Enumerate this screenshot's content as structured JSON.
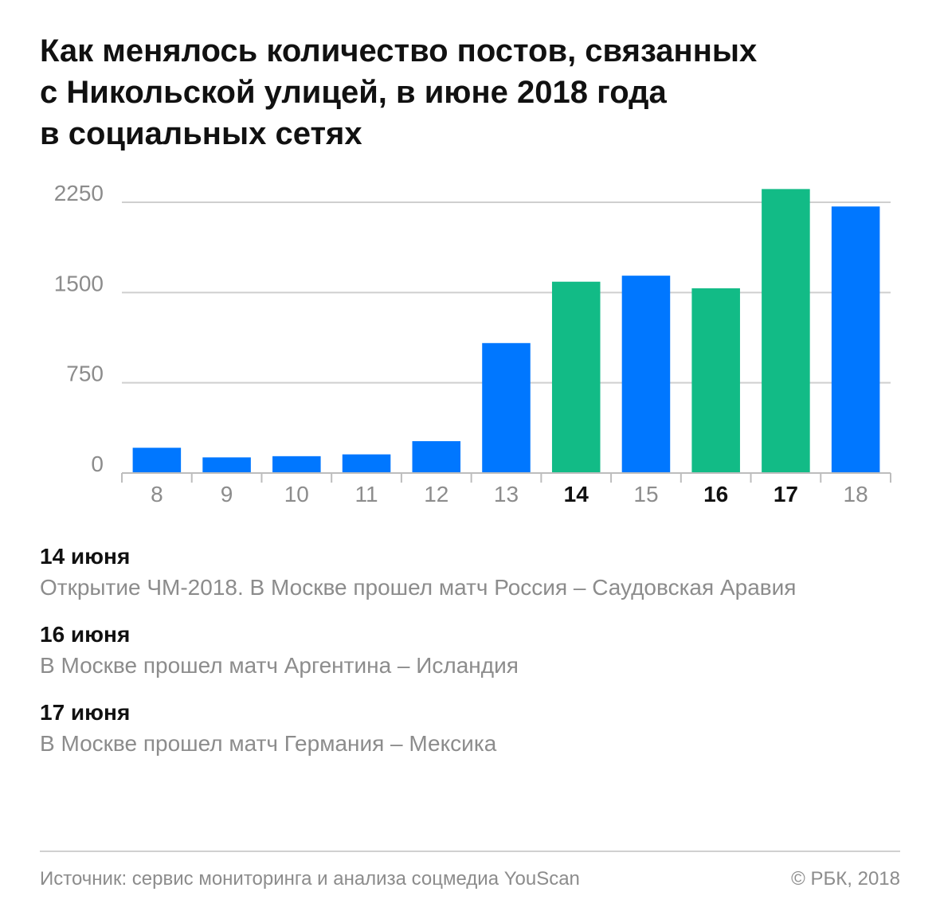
{
  "title_lines": [
    "Как менялось количество постов, связанных",
    "с Никольской улицей, в июне 2018 года",
    "в социальных сетях"
  ],
  "chart_data": {
    "type": "bar",
    "title": "Как менялось количество постов, связанных с Никольской улицей, в июне 2018 года в социальных сетях",
    "categories": [
      "8",
      "9",
      "10",
      "11",
      "12",
      "13",
      "14",
      "15",
      "16",
      "17",
      "18"
    ],
    "values": [
      210,
      130,
      140,
      155,
      265,
      1080,
      1590,
      1640,
      1535,
      2360,
      2215
    ],
    "highlighted": [
      false,
      false,
      false,
      false,
      false,
      false,
      true,
      false,
      true,
      true,
      false
    ],
    "yticks": [
      "0",
      "750",
      "1500",
      "2250"
    ],
    "ylim": [
      0,
      2400
    ],
    "grid": true,
    "xlabel": "",
    "ylabel": "",
    "colors": {
      "default": "#0077ff",
      "highlight": "#12bb86",
      "grid": "#cfcfcf",
      "axis": "#bdbdbd",
      "tick": "#8c8c8c"
    }
  },
  "notes": [
    {
      "title": "14 июня",
      "text": "Открытие ЧМ-2018.  В Москве прошел матч Россия – Саудовская Аравия"
    },
    {
      "title": "16 июня",
      "text": "В Москве прошел матч Аргентина – Исландия"
    },
    {
      "title": "17 июня",
      "text": "В Москве прошел матч Германия – Мексика"
    }
  ],
  "footer": {
    "source": "Источник: сервис мониторинга и анализа соцмедиа YouScan",
    "copyright": "© РБК, 2018"
  }
}
